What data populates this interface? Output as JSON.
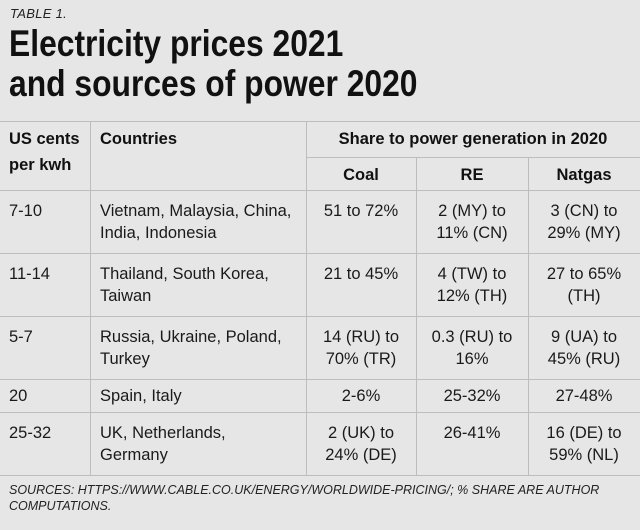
{
  "table_label": "TABLE 1.",
  "title_line1": "Electricity prices 2021",
  "title_line2": "and sources of power 2020",
  "headers": {
    "price": "US cents\nper kwh",
    "countries": "Countries",
    "share_group": "Share to power generation in 2020",
    "coal": "Coal",
    "re": "RE",
    "natgas": "Natgas"
  },
  "rows": [
    {
      "price": "7-10",
      "countries": "Vietnam, Malaysia, China,\nIndia, Indonesia",
      "coal": "51 to 72%",
      "re": "2 (MY) to\n11% (CN)",
      "natgas": "3 (CN) to\n29% (MY)"
    },
    {
      "price": "11-14",
      "countries": "Thailand, South Korea,\nTaiwan",
      "coal": "21 to 45%",
      "re": "4 (TW) to\n12% (TH)",
      "natgas": "27 to 65%\n(TH)"
    },
    {
      "price": "5-7",
      "countries": "Russia, Ukraine, Poland,\nTurkey",
      "coal": "14 (RU) to\n70% (TR)",
      "re": "0.3 (RU) to\n16%",
      "natgas": "9 (UA) to\n45% (RU)"
    },
    {
      "price": "20",
      "countries": "Spain, Italy",
      "coal": "2-6%",
      "re": "25-32%",
      "natgas": "27-48%"
    },
    {
      "price": "25-32",
      "countries": "UK, Netherlands,\nGermany",
      "coal": "2 (UK) to\n24% (DE)",
      "re": "26-41%",
      "natgas": "16 (DE) to\n59% (NL)"
    }
  ],
  "sources": "SOURCES: HTTPS://WWW.CABLE.CO.UK/ENERGY/WORLDWIDE-PRICING/; % SHARE ARE AUTHOR COMPUTATIONS."
}
